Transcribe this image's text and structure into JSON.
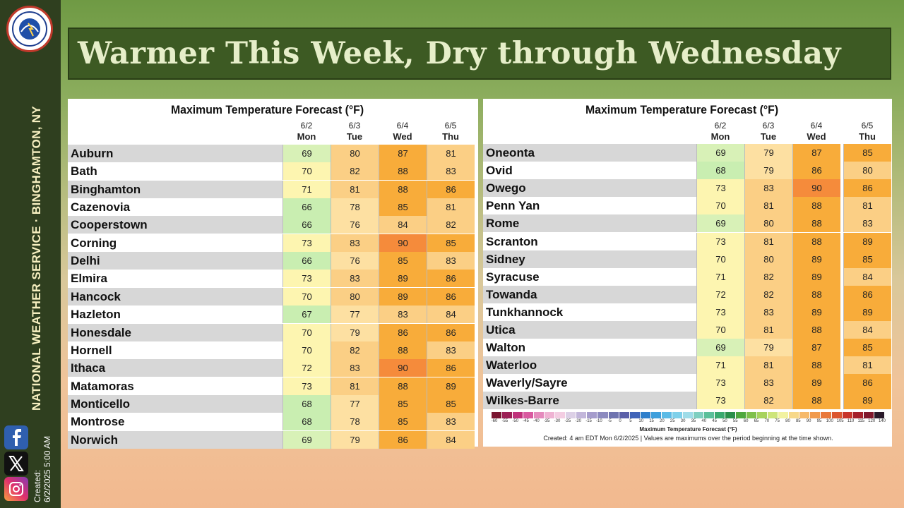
{
  "header": {
    "title": "Warmer This Week, Dry through Wednesday",
    "office": "NATIONAL WEATHER SERVICE · BINGHAMTON, NY",
    "created_label": "Created:",
    "created_time": "6/2/2025 5:00 AM",
    "logo_text": "NATIONAL WEATHER SERVICE"
  },
  "colors": {
    "banner": "#3d5a23",
    "sidebar": "#2f3f1f",
    "temp_66_68": "#c9eeb1",
    "temp_69": "#d8f1b7",
    "temp_70_73": "#fdf5b0",
    "temp_76_79": "#fde0a2",
    "temp_80_84": "#fbcf85",
    "temp_85_89": "#f8ac3a",
    "temp_90": "#f58b3b"
  },
  "columns": [
    {
      "date": "6/2",
      "day": "Mon"
    },
    {
      "date": "6/3",
      "day": "Tue"
    },
    {
      "date": "6/4",
      "day": "Wed"
    },
    {
      "date": "6/5",
      "day": "Thu"
    }
  ],
  "tables": [
    {
      "title": "Maximum Temperature Forecast (°F)",
      "rows": [
        {
          "city": "Auburn",
          "temps": [
            69,
            80,
            87,
            81
          ]
        },
        {
          "city": "Bath",
          "temps": [
            70,
            82,
            88,
            83
          ]
        },
        {
          "city": "Binghamton",
          "temps": [
            71,
            81,
            88,
            86
          ]
        },
        {
          "city": "Cazenovia",
          "temps": [
            66,
            78,
            85,
            81
          ]
        },
        {
          "city": "Cooperstown",
          "temps": [
            66,
            76,
            84,
            82
          ]
        },
        {
          "city": "Corning",
          "temps": [
            73,
            83,
            90,
            85
          ]
        },
        {
          "city": "Delhi",
          "temps": [
            66,
            76,
            85,
            83
          ]
        },
        {
          "city": "Elmira",
          "temps": [
            73,
            83,
            89,
            86
          ]
        },
        {
          "city": "Hancock",
          "temps": [
            70,
            80,
            89,
            86
          ]
        },
        {
          "city": "Hazleton",
          "temps": [
            67,
            77,
            83,
            84
          ]
        },
        {
          "city": "Honesdale",
          "temps": [
            70,
            79,
            86,
            86
          ]
        },
        {
          "city": "Hornell",
          "temps": [
            70,
            82,
            88,
            83
          ]
        },
        {
          "city": "Ithaca",
          "temps": [
            72,
            83,
            90,
            86
          ]
        },
        {
          "city": "Matamoras",
          "temps": [
            73,
            81,
            88,
            89
          ]
        },
        {
          "city": "Monticello",
          "temps": [
            68,
            77,
            85,
            85
          ]
        },
        {
          "city": "Montrose",
          "temps": [
            68,
            78,
            85,
            83
          ]
        },
        {
          "city": "Norwich",
          "temps": [
            69,
            79,
            86,
            84
          ]
        }
      ]
    },
    {
      "title": "Maximum Temperature Forecast (°F)",
      "rows": [
        {
          "city": "Oneonta",
          "temps": [
            69,
            79,
            87,
            85
          ]
        },
        {
          "city": "Ovid",
          "temps": [
            68,
            79,
            86,
            80
          ]
        },
        {
          "city": "Owego",
          "temps": [
            73,
            83,
            90,
            86
          ]
        },
        {
          "city": "Penn Yan",
          "temps": [
            70,
            81,
            88,
            81
          ]
        },
        {
          "city": "Rome",
          "temps": [
            69,
            80,
            88,
            83
          ]
        },
        {
          "city": "Scranton",
          "temps": [
            73,
            81,
            88,
            89
          ]
        },
        {
          "city": "Sidney",
          "temps": [
            70,
            80,
            89,
            85
          ]
        },
        {
          "city": "Syracuse",
          "temps": [
            71,
            82,
            89,
            84
          ]
        },
        {
          "city": "Towanda",
          "temps": [
            72,
            82,
            88,
            86
          ]
        },
        {
          "city": "Tunkhannock",
          "temps": [
            73,
            83,
            89,
            89
          ]
        },
        {
          "city": "Utica",
          "temps": [
            70,
            81,
            88,
            84
          ]
        },
        {
          "city": "Walton",
          "temps": [
            69,
            79,
            87,
            85
          ]
        },
        {
          "city": "Waterloo",
          "temps": [
            71,
            81,
            88,
            81
          ]
        },
        {
          "city": "Waverly/Sayre",
          "temps": [
            73,
            83,
            89,
            86
          ]
        },
        {
          "city": "Wilkes-Barre",
          "temps": [
            73,
            82,
            88,
            89
          ]
        }
      ]
    }
  ],
  "legend": {
    "ticks": [
      "-60",
      "-55",
      "-50",
      "-45",
      "-40",
      "-35",
      "-30",
      "-25",
      "-20",
      "-15",
      "-10",
      "-5",
      "0",
      "5",
      "10",
      "15",
      "20",
      "25",
      "30",
      "35",
      "40",
      "45",
      "50",
      "55",
      "60",
      "65",
      "70",
      "75",
      "80",
      "85",
      "90",
      "95",
      "100",
      "105",
      "110",
      "115",
      "120",
      "140"
    ],
    "label": "Maximum Temperature Forecast (°F)",
    "note": "Created: 4 am EDT Mon 6/2/2025  |  Values are maximums over the period beginning at the time shown.",
    "bar_colors": [
      "#7a1530",
      "#9c1f55",
      "#c0307a",
      "#d95aa0",
      "#e58bbd",
      "#efb3d3",
      "#f3cde2",
      "#dcd0e6",
      "#c2b6da",
      "#a59ccc",
      "#8c8abf",
      "#6f74b0",
      "#5a5fa8",
      "#3f63b8",
      "#2f7fcb",
      "#3f9fdc",
      "#5cbbe6",
      "#7fd0ea",
      "#9fdce8",
      "#7fcfc0",
      "#5bbf9a",
      "#3aa96f",
      "#2a8f4a",
      "#4fa83e",
      "#7fc04c",
      "#a7d35e",
      "#cde57a",
      "#f2f2a0",
      "#f7d88a",
      "#f6b96a",
      "#f19a4c",
      "#e9783a",
      "#dc552e",
      "#c8342a",
      "#a51f2a",
      "#80172c",
      "#2a1a2a"
    ]
  }
}
